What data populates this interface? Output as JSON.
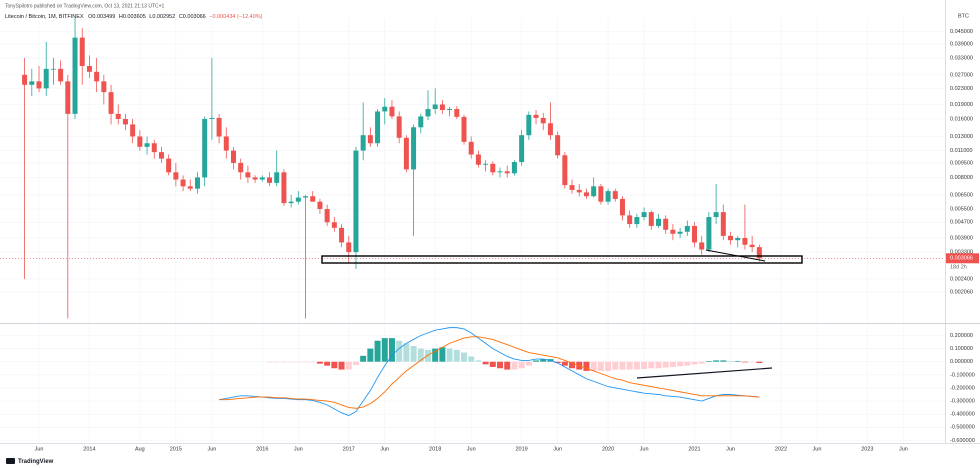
{
  "header": "TonySpilotro published on TradingView.com, Oct 13, 2021 21:13 UTC+1",
  "footer": "TradingView",
  "chart_data": {
    "type": "candlestick",
    "symbol": "Litecoin / Bitcoin, 1M, BITFINEX",
    "ohlc_labels": [
      "O0.003499",
      "H0.003605",
      "L0.002952",
      "C0.003066",
      "−0.000434 (−12.40%)"
    ],
    "currency": "BTC",
    "price_label": "0.003066",
    "countdown": "18d 2h",
    "categories": [
      null,
      null,
      "Jun",
      null,
      null,
      null,
      null,
      null,
      null,
      "2014",
      null,
      null,
      null,
      null,
      null,
      null,
      "Aug",
      null,
      null,
      null,
      null,
      "2015",
      null,
      null,
      null,
      null,
      "Jun",
      null,
      null,
      null,
      null,
      null,
      null,
      "2016",
      null,
      null,
      null,
      null,
      "Jun",
      null,
      null,
      null,
      null,
      null,
      null,
      "2017",
      null,
      null,
      null,
      null,
      "Jun",
      null,
      null,
      null,
      null,
      null,
      null,
      "2018",
      null,
      null,
      null,
      null,
      "Jun",
      null,
      null,
      null,
      null,
      null,
      null,
      "2019",
      null,
      null,
      null,
      null,
      "Jun",
      null,
      null,
      null,
      null,
      null,
      null,
      "2020",
      null,
      null,
      null,
      null,
      "Jun",
      null,
      null,
      null,
      null,
      null,
      null,
      "2021",
      null,
      null,
      null,
      null,
      "Jun",
      null,
      null,
      null,
      null,
      null,
      null,
      "2022",
      null,
      null,
      null,
      null,
      "Jun",
      null,
      null,
      null,
      null,
      null,
      null,
      "2023",
      null,
      null,
      null,
      null,
      "Jun"
    ],
    "open": [
      0.027,
      0.024,
      0.025,
      0.023,
      0.029,
      0.029,
      0.025,
      0.017,
      0.042,
      0.03,
      0.028,
      0.025,
      0.022,
      0.017,
      0.016,
      0.015,
      0.013,
      0.0115,
      0.012,
      0.0108,
      0.01,
      0.0085,
      0.0078,
      0.0072,
      0.007,
      0.008,
      0.016,
      0.0162,
      0.013,
      0.011,
      0.0095,
      0.0085,
      0.008,
      0.0078,
      0.008,
      0.0075,
      0.0085,
      0.0059,
      0.006,
      0.0063,
      0.0064,
      0.006,
      0.0055,
      0.0047,
      0.0044,
      0.0037,
      0.0033,
      0.011,
      0.0132,
      0.012,
      0.0175,
      0.0185,
      0.0165,
      0.0128,
      0.0088,
      0.0145,
      0.0165,
      0.018,
      0.019,
      0.0178,
      0.018,
      0.0164,
      0.0122,
      0.0105,
      0.0093,
      0.0094,
      0.0085,
      0.0086,
      0.0084,
      0.0096,
      0.0132,
      0.0168,
      0.0162,
      0.0152,
      0.0132,
      0.0104,
      0.0073,
      0.0069,
      0.0067,
      0.0064,
      0.0072,
      0.006,
      0.0068,
      0.0062,
      0.0051,
      0.0046,
      0.005,
      0.0053,
      0.0045,
      0.0049,
      0.0043,
      0.0041,
      0.0042,
      0.0045,
      0.0037,
      0.0034,
      0.005,
      0.0053,
      0.004,
      0.0038,
      0.0039,
      0.0036,
      0.003499,
      null,
      null,
      null,
      null,
      null,
      null,
      null,
      null,
      null,
      null,
      null,
      null,
      null,
      null,
      null,
      null,
      null,
      null,
      null,
      null
    ],
    "high": [
      0.033,
      0.029,
      0.03,
      0.04,
      0.033,
      0.032,
      0.027,
      0.054,
      0.047,
      0.034,
      0.033,
      0.027,
      0.024,
      0.019,
      0.017,
      0.016,
      0.014,
      0.013,
      0.0125,
      0.0115,
      0.0105,
      0.0095,
      0.0082,
      0.0078,
      0.0085,
      0.0165,
      0.033,
      0.017,
      0.0145,
      0.0115,
      0.01,
      0.0092,
      0.0082,
      0.0082,
      0.0085,
      0.011,
      0.0088,
      0.0065,
      0.0068,
      0.0065,
      0.0068,
      0.0062,
      0.0058,
      0.005,
      0.0046,
      0.004,
      0.0115,
      0.0195,
      0.0145,
      0.018,
      0.0205,
      0.02,
      0.0175,
      0.0132,
      0.015,
      0.017,
      0.0225,
      0.023,
      0.02,
      0.0185,
      0.0186,
      0.0168,
      0.013,
      0.011,
      0.0098,
      0.0097,
      0.009,
      0.0092,
      0.0098,
      0.014,
      0.0175,
      0.0178,
      0.0172,
      0.0195,
      0.0138,
      0.0108,
      0.0078,
      0.0074,
      0.007,
      0.008,
      0.0074,
      0.007,
      0.007,
      0.0064,
      0.0054,
      0.0052,
      0.0056,
      0.0054,
      0.0052,
      0.0051,
      0.0046,
      0.0044,
      0.0048,
      0.0047,
      0.004,
      0.0053,
      0.0074,
      0.0058,
      0.0042,
      0.004,
      0.0058,
      0.004,
      0.003605,
      null,
      null,
      null,
      null,
      null,
      null,
      null,
      null,
      null,
      null,
      null,
      null,
      null,
      null,
      null,
      null,
      null,
      null,
      null,
      null
    ],
    "low": [
      0.0024,
      0.021,
      0.022,
      0.021,
      0.024,
      0.024,
      0.0015,
      0.016,
      0.024,
      0.026,
      0.022,
      0.019,
      0.015,
      0.015,
      0.014,
      0.012,
      0.011,
      0.0105,
      0.01,
      0.0095,
      0.0082,
      0.0072,
      0.0068,
      0.0068,
      0.0066,
      0.0072,
      0.0125,
      0.012,
      0.01,
      0.0088,
      0.0078,
      0.0075,
      0.0075,
      0.0076,
      0.0072,
      0.0072,
      0.0057,
      0.0056,
      0.0058,
      0.0015,
      0.006,
      0.0052,
      0.0045,
      0.0042,
      0.0035,
      0.0029,
      0.0027,
      0.0098,
      0.0115,
      0.0115,
      0.015,
      0.016,
      0.012,
      0.0085,
      0.004,
      0.0135,
      0.0158,
      0.017,
      0.017,
      0.0165,
      0.016,
      0.0118,
      0.01,
      0.009,
      0.0086,
      0.0082,
      0.008,
      0.008,
      0.0082,
      0.0092,
      0.0125,
      0.015,
      0.014,
      0.0125,
      0.01,
      0.007,
      0.0066,
      0.0064,
      0.0062,
      0.0063,
      0.0058,
      0.0058,
      0.006,
      0.0048,
      0.0044,
      0.0044,
      0.0048,
      0.0043,
      0.0044,
      0.0041,
      0.0038,
      0.0039,
      0.004,
      0.0035,
      0.0032,
      0.0033,
      0.0046,
      0.0038,
      0.0036,
      0.0035,
      0.0034,
      0.0033,
      0.002952,
      null,
      null,
      null,
      null,
      null,
      null,
      null,
      null,
      null,
      null,
      null,
      null,
      null,
      null,
      null,
      null,
      null,
      null,
      null,
      null
    ],
    "close": [
      0.024,
      0.025,
      0.023,
      0.029,
      0.029,
      0.025,
      0.017,
      0.042,
      0.03,
      0.028,
      0.025,
      0.022,
      0.017,
      0.016,
      0.015,
      0.013,
      0.0115,
      0.012,
      0.0108,
      0.01,
      0.0085,
      0.0078,
      0.0072,
      0.007,
      0.008,
      0.016,
      0.0162,
      0.013,
      0.011,
      0.0095,
      0.0085,
      0.008,
      0.0078,
      0.008,
      0.0075,
      0.0085,
      0.0059,
      0.006,
      0.0063,
      0.0064,
      0.006,
      0.0055,
      0.0047,
      0.0044,
      0.0037,
      0.0033,
      0.011,
      0.0132,
      0.012,
      0.0175,
      0.0185,
      0.0165,
      0.0128,
      0.0088,
      0.0145,
      0.0165,
      0.018,
      0.019,
      0.0178,
      0.018,
      0.0164,
      0.0122,
      0.0105,
      0.0093,
      0.0094,
      0.0085,
      0.0086,
      0.0084,
      0.0096,
      0.0132,
      0.0168,
      0.0162,
      0.0152,
      0.0132,
      0.0104,
      0.0073,
      0.0069,
      0.0067,
      0.0064,
      0.0072,
      0.006,
      0.0068,
      0.0062,
      0.0051,
      0.0046,
      0.005,
      0.0053,
      0.0045,
      0.0049,
      0.0043,
      0.0041,
      0.0042,
      0.0045,
      0.0037,
      0.0034,
      0.005,
      0.0053,
      0.004,
      0.0038,
      0.0039,
      0.0036,
      0.0035,
      0.003066,
      null,
      null,
      null,
      null,
      null,
      null,
      null,
      null,
      null,
      null,
      null,
      null,
      null,
      null,
      null,
      null,
      null,
      null,
      null,
      null
    ],
    "up_color": "#26a69a",
    "down_color": "#ef5350",
    "log_scale": true,
    "grid": true,
    "ylim": [
      0.00144,
      0.053
    ],
    "yticks": [
      {
        "value": 0.045,
        "label": "0.045000"
      },
      {
        "value": 0.039,
        "label": "0.039000"
      },
      {
        "value": 0.033,
        "label": "0.033000"
      },
      {
        "value": 0.027,
        "label": "0.027000"
      },
      {
        "value": 0.023,
        "label": "0.023000"
      },
      {
        "value": 0.019,
        "label": "0.019000"
      },
      {
        "value": 0.016,
        "label": "0.016000"
      },
      {
        "value": 0.013,
        "label": "0.013000"
      },
      {
        "value": 0.011,
        "label": "0.011000"
      },
      {
        "value": 0.0095,
        "label": "0.009500"
      },
      {
        "value": 0.008,
        "label": "0.008000"
      },
      {
        "value": 0.0065,
        "label": "0.006500"
      },
      {
        "value": 0.0055,
        "label": "0.005500"
      },
      {
        "value": 0.0047,
        "label": "0.004700"
      },
      {
        "value": 0.0039,
        "label": "0.003900"
      },
      {
        "value": 0.0033,
        "label": "0.003300"
      },
      {
        "value": 0.0024,
        "label": "0.002400"
      },
      {
        "value": 0.00206,
        "label": "0.002060"
      }
    ],
    "macd": {
      "type": "macd",
      "histogram": [
        null,
        null,
        null,
        null,
        null,
        null,
        null,
        null,
        null,
        null,
        null,
        null,
        null,
        null,
        null,
        null,
        null,
        null,
        null,
        null,
        null,
        null,
        null,
        null,
        null,
        null,
        null,
        null,
        null,
        null,
        null,
        null,
        null,
        null,
        -0.005,
        -0.005,
        -0.005,
        -0.005,
        -0.005,
        -0.005,
        -0.005,
        -0.015,
        -0.03,
        -0.05,
        -0.06,
        -0.06,
        -0.025,
        0.045,
        0.1,
        0.16,
        0.18,
        0.18,
        0.16,
        0.14,
        0.12,
        0.1,
        0.09,
        0.1,
        0.11,
        0.1,
        0.09,
        0.07,
        0.04,
        0.01,
        -0.02,
        -0.04,
        -0.05,
        -0.06,
        -0.06,
        -0.05,
        -0.03,
        0.01,
        0.02,
        0.02,
        -0.01,
        -0.03,
        -0.05,
        -0.06,
        -0.07,
        -0.07,
        -0.07,
        -0.07,
        -0.06,
        -0.06,
        -0.06,
        -0.06,
        -0.055,
        -0.05,
        -0.05,
        -0.045,
        -0.04,
        -0.035,
        -0.03,
        -0.02,
        -0.015,
        0.005,
        0.01,
        0.01,
        0.005,
        0.005,
        -0.005,
        -0.005,
        -0.01,
        null,
        null,
        null,
        null,
        null,
        null,
        null,
        null,
        null,
        null,
        null,
        null,
        null,
        null,
        null,
        null,
        null,
        null,
        null,
        null
      ],
      "macd": [
        null,
        null,
        null,
        null,
        null,
        null,
        null,
        null,
        null,
        null,
        null,
        null,
        null,
        null,
        null,
        null,
        null,
        null,
        null,
        null,
        null,
        null,
        null,
        null,
        null,
        null,
        null,
        -0.29,
        -0.28,
        -0.27,
        -0.26,
        -0.26,
        -0.265,
        -0.27,
        -0.275,
        -0.28,
        -0.28,
        -0.285,
        -0.29,
        -0.29,
        -0.295,
        -0.31,
        -0.33,
        -0.36,
        -0.39,
        -0.41,
        -0.38,
        -0.3,
        -0.22,
        -0.12,
        -0.03,
        0.05,
        0.1,
        0.14,
        0.17,
        0.2,
        0.22,
        0.24,
        0.25,
        0.26,
        0.26,
        0.25,
        0.22,
        0.18,
        0.14,
        0.1,
        0.07,
        0.04,
        0.02,
        0.01,
        0.01,
        0.02,
        0.02,
        0.01,
        -0.01,
        -0.04,
        -0.07,
        -0.1,
        -0.13,
        -0.15,
        -0.17,
        -0.19,
        -0.2,
        -0.21,
        -0.22,
        -0.23,
        -0.24,
        -0.245,
        -0.25,
        -0.26,
        -0.265,
        -0.27,
        -0.28,
        -0.29,
        -0.3,
        -0.28,
        -0.26,
        -0.25,
        -0.25,
        -0.255,
        -0.26,
        -0.265,
        -0.27,
        null,
        null,
        null,
        null,
        null,
        null,
        null,
        null,
        null,
        null,
        null,
        null,
        null,
        null,
        null,
        null,
        null,
        null,
        null,
        null
      ],
      "signal": [
        null,
        null,
        null,
        null,
        null,
        null,
        null,
        null,
        null,
        null,
        null,
        null,
        null,
        null,
        null,
        null,
        null,
        null,
        null,
        null,
        null,
        null,
        null,
        null,
        null,
        null,
        null,
        -0.29,
        -0.29,
        -0.285,
        -0.28,
        -0.275,
        -0.27,
        -0.27,
        -0.27,
        -0.275,
        -0.275,
        -0.28,
        -0.285,
        -0.285,
        -0.29,
        -0.295,
        -0.3,
        -0.31,
        -0.33,
        -0.35,
        -0.355,
        -0.345,
        -0.32,
        -0.28,
        -0.23,
        -0.17,
        -0.12,
        -0.07,
        -0.03,
        0.01,
        0.05,
        0.08,
        0.11,
        0.14,
        0.16,
        0.18,
        0.19,
        0.19,
        0.18,
        0.17,
        0.15,
        0.13,
        0.11,
        0.09,
        0.07,
        0.06,
        0.05,
        0.04,
        0.03,
        0.01,
        -0.01,
        -0.03,
        -0.05,
        -0.07,
        -0.09,
        -0.11,
        -0.13,
        -0.14,
        -0.16,
        -0.17,
        -0.18,
        -0.19,
        -0.2,
        -0.21,
        -0.22,
        -0.23,
        -0.24,
        -0.25,
        -0.26,
        -0.26,
        -0.26,
        -0.26,
        -0.26,
        -0.26,
        -0.26,
        -0.265,
        -0.27,
        null,
        null,
        null,
        null,
        null,
        null,
        null,
        null,
        null,
        null,
        null,
        null,
        null,
        null,
        null,
        null,
        null,
        null,
        null,
        null
      ],
      "macd_color": "#2196f3",
      "signal_color": "#ff6d00",
      "histogram_colors": [
        "#26a69a",
        "#b2dfdb",
        "#ffcdd2",
        "#ef5350"
      ],
      "ylim": [
        -0.62,
        0.28
      ],
      "yticks": [
        {
          "value": 0.2,
          "label": "0.200000"
        },
        {
          "value": 0.1,
          "label": "0.100000"
        },
        {
          "value": 0,
          "label": "0.000000"
        },
        {
          "value": -0.1,
          "label": "-0.100000"
        },
        {
          "value": -0.2,
          "label": "-0.200000"
        },
        {
          "value": -0.3,
          "label": "-0.300000"
        },
        {
          "value": -0.4,
          "label": "-0.400000"
        },
        {
          "value": -0.5,
          "label": "-0.500000"
        },
        {
          "value": -0.6,
          "label": "-0.600000"
        }
      ]
    }
  }
}
